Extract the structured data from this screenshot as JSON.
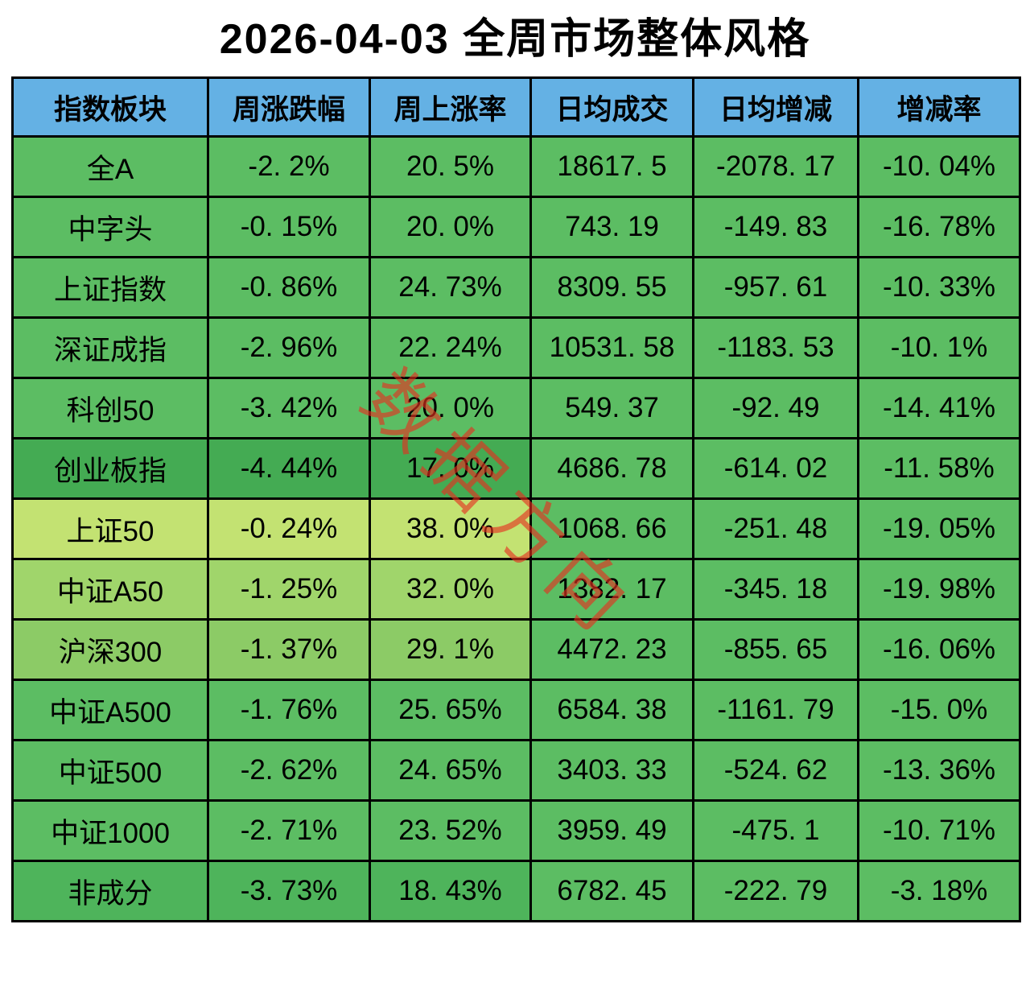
{
  "title": "2026-04-03 全周市场整体风格",
  "watermark": "数据方向",
  "colors": {
    "header_bg": "#64b1e4",
    "std_green": "#5cbd63",
    "border": "#000000",
    "watermark_red": "rgba(230,45,30,0.62)"
  },
  "chart_data": {
    "type": "table",
    "title": "2026-04-03 全周市场整体风格",
    "columns": [
      "指数板块",
      "周涨跌幅",
      "周上涨率",
      "日均成交",
      "日均增减",
      "增减率"
    ],
    "rows": [
      {
        "cells": [
          "全A",
          "-2. 2%",
          "20. 5%",
          "18617. 5",
          "-2078. 17",
          "-10. 04%"
        ],
        "left_bg": "#5cbd63"
      },
      {
        "cells": [
          "中字头",
          "-0. 15%",
          "20. 0%",
          "743. 19",
          "-149. 83",
          "-16. 78%"
        ],
        "left_bg": "#5cbd63"
      },
      {
        "cells": [
          "上证指数",
          "-0. 86%",
          "24. 73%",
          "8309. 55",
          "-957. 61",
          "-10. 33%"
        ],
        "left_bg": "#5cbd63"
      },
      {
        "cells": [
          "深证成指",
          "-2. 96%",
          "22. 24%",
          "10531. 58",
          "-1183. 53",
          "-10. 1%"
        ],
        "left_bg": "#5cbd63"
      },
      {
        "cells": [
          "科创50",
          "-3. 42%",
          "20. 0%",
          "549. 37",
          "-92. 49",
          "-14. 41%"
        ],
        "left_bg": "#5cbd63"
      },
      {
        "cells": [
          "创业板指",
          "-4. 44%",
          "17. 0%",
          "4686. 78",
          "-614. 02",
          "-11. 58%"
        ],
        "left_bg": "#44ab53"
      },
      {
        "cells": [
          "上证50",
          "-0. 24%",
          "38. 0%",
          "1068. 66",
          "-251. 48",
          "-19. 05%"
        ],
        "left_bg": "#c3e272"
      },
      {
        "cells": [
          "中证A50",
          "-1. 25%",
          "32. 0%",
          "1382. 17",
          "-345. 18",
          "-19. 98%"
        ],
        "left_bg": "#a0d56b"
      },
      {
        "cells": [
          "沪深300",
          "-1. 37%",
          "29. 1%",
          "4472. 23",
          "-855. 65",
          "-16. 06%"
        ],
        "left_bg": "#8ccb66"
      },
      {
        "cells": [
          "中证A500",
          "-1. 76%",
          "25. 65%",
          "6584. 38",
          "-1161. 79",
          "-15. 0%"
        ],
        "left_bg": "#5cbd63"
      },
      {
        "cells": [
          "中证500",
          "-2. 62%",
          "24. 65%",
          "3403. 33",
          "-524. 62",
          "-13. 36%"
        ],
        "left_bg": "#5cbd63"
      },
      {
        "cells": [
          "中证1000",
          "-2. 71%",
          "23. 52%",
          "3959. 49",
          "-475. 1",
          "-10. 71%"
        ],
        "left_bg": "#5cbd63"
      },
      {
        "cells": [
          "非成分",
          "-3. 73%",
          "18. 43%",
          "6782. 45",
          "-222. 79",
          "-3. 18%"
        ],
        "left_bg": "#4eb45b"
      }
    ]
  }
}
